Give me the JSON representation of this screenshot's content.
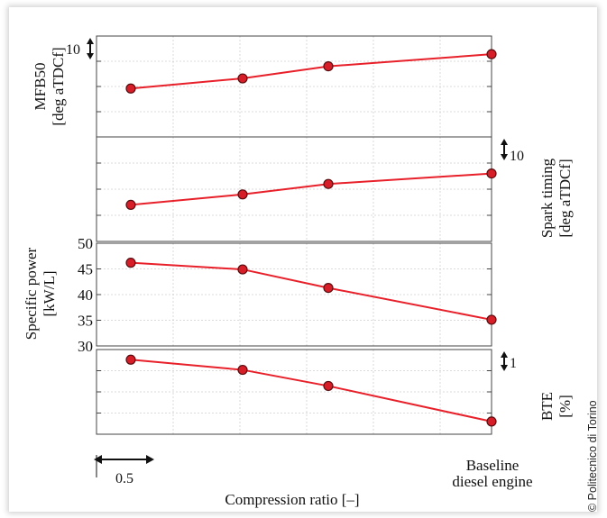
{
  "credit": "© Politecnico di Torino",
  "chart_data": {
    "type": "line",
    "xlabel": "Compression ratio [–]",
    "x_annotations": {
      "scale_bar_label": "0.5",
      "baseline_label_line1": "Baseline",
      "baseline_label_line2": "diesel engine"
    },
    "x": [
      1,
      2,
      3,
      4
    ],
    "line_color": "#e8202a",
    "marker_color": "#d61e28",
    "grid": true,
    "panels": [
      {
        "id": "mfb50",
        "ylabel_line1": "MFB50",
        "ylabel_line2": "[deg aTDCf]",
        "ylabel_side": "left",
        "scale_marker": "10",
        "scale_marker_side": "left",
        "values": [
          0.48,
          0.58,
          0.7,
          0.82
        ],
        "ylim": [
          0,
          1
        ],
        "tick_labels": []
      },
      {
        "id": "spark_timing",
        "ylabel_line1": "Spark timing",
        "ylabel_line2": "[deg aTDCf]",
        "ylabel_side": "right",
        "scale_marker": "10",
        "scale_marker_side": "right",
        "values": [
          0.35,
          0.45,
          0.55,
          0.65
        ],
        "ylim": [
          0,
          1
        ],
        "tick_labels": []
      },
      {
        "id": "specific_power",
        "ylabel_line1": "Specific power",
        "ylabel_line2": "[kW/L]",
        "ylabel_side": "left",
        "values": [
          46.2,
          44.9,
          41.3,
          35.1
        ],
        "ylim": [
          30,
          50
        ],
        "tick_values": [
          30,
          35,
          40,
          45,
          50
        ],
        "tick_labels": [
          "30",
          "35",
          "40",
          "45",
          "50"
        ]
      },
      {
        "id": "bte",
        "ylabel_line1": "BTE",
        "ylabel_line2": "[%]",
        "ylabel_side": "right",
        "scale_marker": "1",
        "scale_marker_side": "right",
        "values": [
          0.88,
          0.76,
          0.57,
          0.15
        ],
        "ylim": [
          0,
          1
        ],
        "tick_labels": []
      }
    ]
  }
}
